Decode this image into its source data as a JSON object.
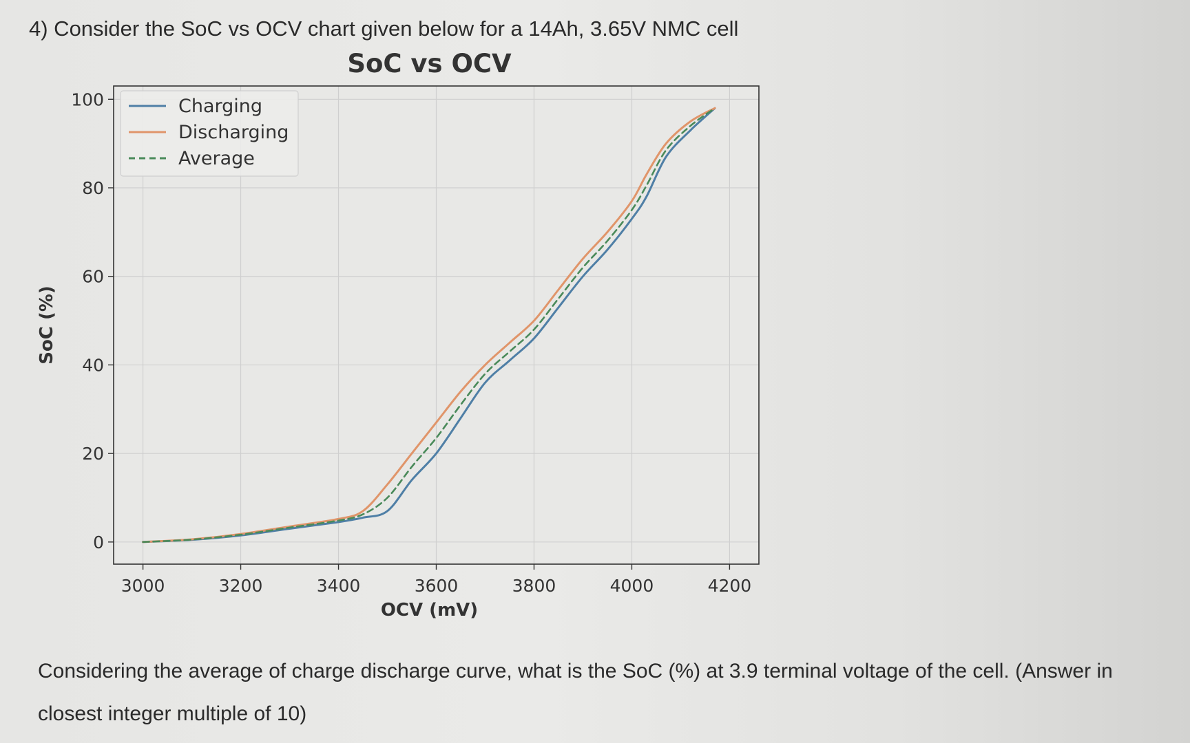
{
  "question": {
    "header": "4) Consider the SoC vs OCV chart given below for a 14Ah, 3.65V NMC cell",
    "body": "Considering the average of charge discharge curve, what is the SoC (%) at 3.9 terminal voltage of the cell. (Answer in closest integer multiple of 10)"
  },
  "colors": {
    "charging": "#4f7fa6",
    "discharging": "#e0956a",
    "average": "#4a8a5a",
    "grid": "#cfcfcf",
    "frame": "#333333",
    "plot_bg": "#e8e8e6"
  },
  "chart_data": {
    "type": "line",
    "title": "SoC vs OCV",
    "xlabel": "OCV (mV)",
    "ylabel": "SoC (%)",
    "xlim": [
      2940,
      4260
    ],
    "ylim": [
      -5,
      103
    ],
    "xticks": [
      3000,
      3200,
      3400,
      3600,
      3800,
      4000,
      4200
    ],
    "yticks": [
      0,
      20,
      40,
      60,
      80,
      100
    ],
    "grid": true,
    "legend": "top-left",
    "series": [
      {
        "name": "Charging",
        "style": "solid",
        "x": [
          3000,
          3100,
          3200,
          3300,
          3400,
          3450,
          3500,
          3550,
          3600,
          3650,
          3700,
          3750,
          3800,
          3850,
          3900,
          3950,
          4000,
          4030,
          4070,
          4120,
          4170
        ],
        "y": [
          0,
          0.5,
          1.5,
          3,
          4.5,
          5.5,
          7,
          14,
          20,
          28,
          36,
          41,
          46,
          53,
          60,
          66,
          73,
          78,
          87,
          93,
          98
        ]
      },
      {
        "name": "Discharging",
        "style": "solid",
        "x": [
          3000,
          3100,
          3200,
          3300,
          3400,
          3450,
          3500,
          3550,
          3600,
          3650,
          3700,
          3750,
          3800,
          3850,
          3900,
          3950,
          4000,
          4030,
          4070,
          4120,
          4170
        ],
        "y": [
          0,
          0.6,
          1.8,
          3.5,
          5.2,
          7,
          13,
          20,
          27,
          34,
          40,
          45,
          50,
          57,
          64,
          70,
          77,
          83,
          90,
          95,
          98
        ]
      },
      {
        "name": "Average",
        "style": "dashed",
        "x": [
          3000,
          3100,
          3200,
          3300,
          3400,
          3450,
          3500,
          3550,
          3600,
          3650,
          3700,
          3750,
          3800,
          3850,
          3900,
          3950,
          4000,
          4030,
          4070,
          4120,
          4170
        ],
        "y": [
          0,
          0.55,
          1.65,
          3.25,
          4.85,
          6.25,
          10,
          17,
          23.5,
          31,
          38,
          43,
          48,
          55,
          62,
          68,
          75,
          80.5,
          88.5,
          94,
          98
        ]
      }
    ]
  }
}
